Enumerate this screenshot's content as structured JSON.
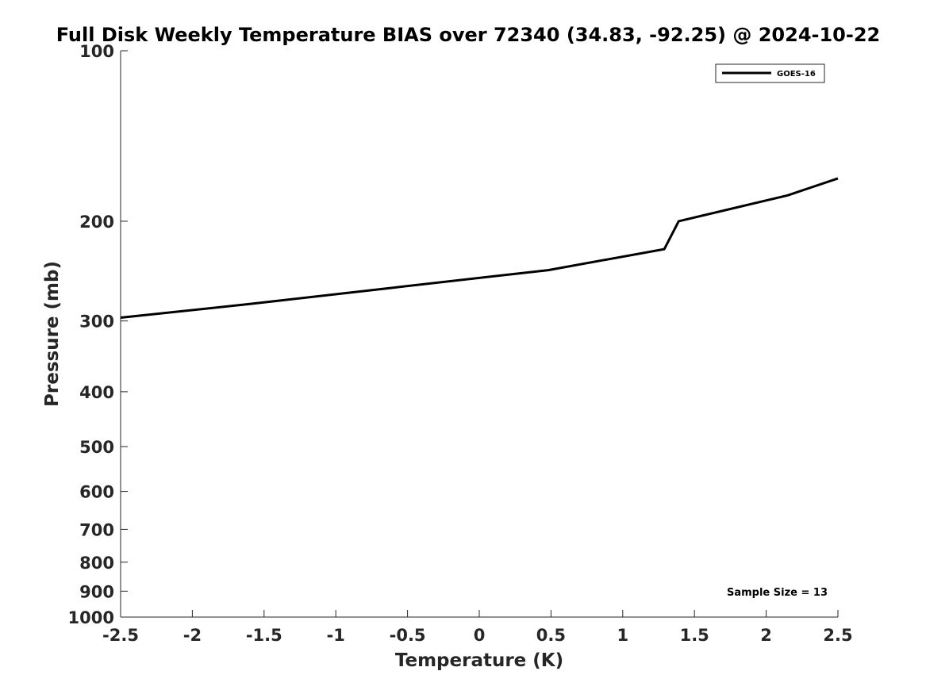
{
  "chart_data": {
    "type": "line",
    "title": "Full Disk Weekly Temperature BIAS over 72340 (34.83, -92.25) @ 2024-10-22",
    "xlabel": "Temperature (K)",
    "ylabel": "Pressure (mb)",
    "xlim": [
      -2.5,
      2.5
    ],
    "ylim": [
      100,
      1000
    ],
    "y_scale": "log",
    "y_reversed": true,
    "grid": false,
    "legend_position": "top-right",
    "x_ticks": [
      -2.5,
      -2,
      -1.5,
      -1,
      -0.5,
      0,
      0.5,
      1,
      1.5,
      2,
      2.5
    ],
    "x_tick_labels": [
      "-2.5",
      "-2",
      "-1.5",
      "-1",
      "-0.5",
      "0",
      "0.5",
      "1",
      "1.5",
      "2",
      "2.5"
    ],
    "y_ticks": [
      100,
      200,
      300,
      400,
      500,
      600,
      700,
      800,
      900,
      1000
    ],
    "y_tick_labels": [
      "100",
      "200",
      "300",
      "400",
      "500",
      "600",
      "700",
      "800",
      "900",
      "1000"
    ],
    "series": [
      {
        "name": "GOES-16",
        "color": "#000000",
        "points": [
          {
            "x": -2.5,
            "y": 296
          },
          {
            "x": -1.6,
            "y": 280
          },
          {
            "x": -0.6,
            "y": 262
          },
          {
            "x": 0.48,
            "y": 244
          },
          {
            "x": 1.29,
            "y": 224
          },
          {
            "x": 1.39,
            "y": 200
          },
          {
            "x": 2.15,
            "y": 180
          },
          {
            "x": 2.5,
            "y": 168
          }
        ]
      }
    ],
    "annotation": "Sample Size = 13"
  }
}
